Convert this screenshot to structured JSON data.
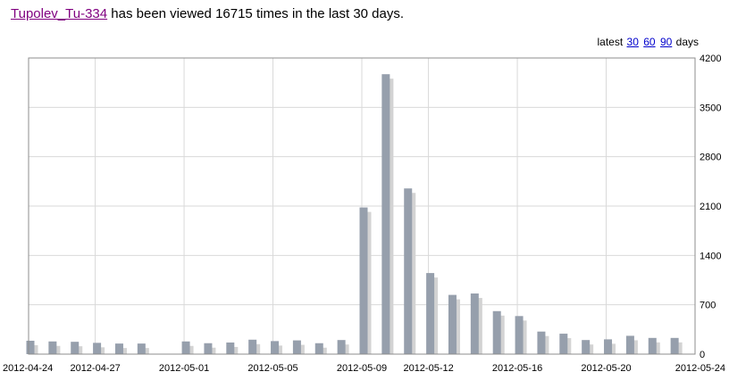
{
  "header": {
    "article_link": "Tupolev_Tu-334",
    "text_before_count": "has been viewed",
    "view_count": "16715",
    "text_after_count": "times in the last 30 days."
  },
  "range_selector": {
    "prefix": "latest",
    "options": [
      "30",
      "60",
      "90"
    ],
    "suffix": "days"
  },
  "colors": {
    "bar": "#969fac",
    "shadow": "#d3d3d3",
    "grid": "#d9d9d9",
    "frame": "#8c8c8c"
  },
  "chart_data": {
    "type": "bar",
    "categories": [
      "2012-04-24",
      "2012-04-25",
      "2012-04-26",
      "2012-04-27",
      "2012-04-28",
      "2012-04-29",
      "2012-04-30",
      "2012-05-01",
      "2012-05-02",
      "2012-05-03",
      "2012-05-04",
      "2012-05-05",
      "2012-05-06",
      "2012-05-07",
      "2012-05-08",
      "2012-05-09",
      "2012-05-10",
      "2012-05-11",
      "2012-05-12",
      "2012-05-13",
      "2012-05-14",
      "2012-05-15",
      "2012-05-16",
      "2012-05-17",
      "2012-05-18",
      "2012-05-19",
      "2012-05-20",
      "2012-05-21",
      "2012-05-22",
      "2012-05-23",
      "2012-05-24"
    ],
    "values": [
      190,
      180,
      175,
      160,
      150,
      150,
      0,
      180,
      155,
      165,
      205,
      185,
      195,
      155,
      200,
      2080,
      3970,
      2350,
      1150,
      840,
      860,
      610,
      540,
      320,
      290,
      200,
      210,
      260,
      230,
      230,
      0
    ],
    "x_tick_labels": [
      "2012-04-24",
      "2012-04-27",
      "2012-05-01",
      "2012-05-05",
      "2012-05-09",
      "2012-05-12",
      "2012-05-16",
      "2012-05-20",
      "2012-05-24"
    ],
    "y_tick_labels": [
      "0",
      "700",
      "1400",
      "2100",
      "2800",
      "3500",
      "4200"
    ],
    "ylim": [
      0,
      4200
    ],
    "grid": true
  }
}
